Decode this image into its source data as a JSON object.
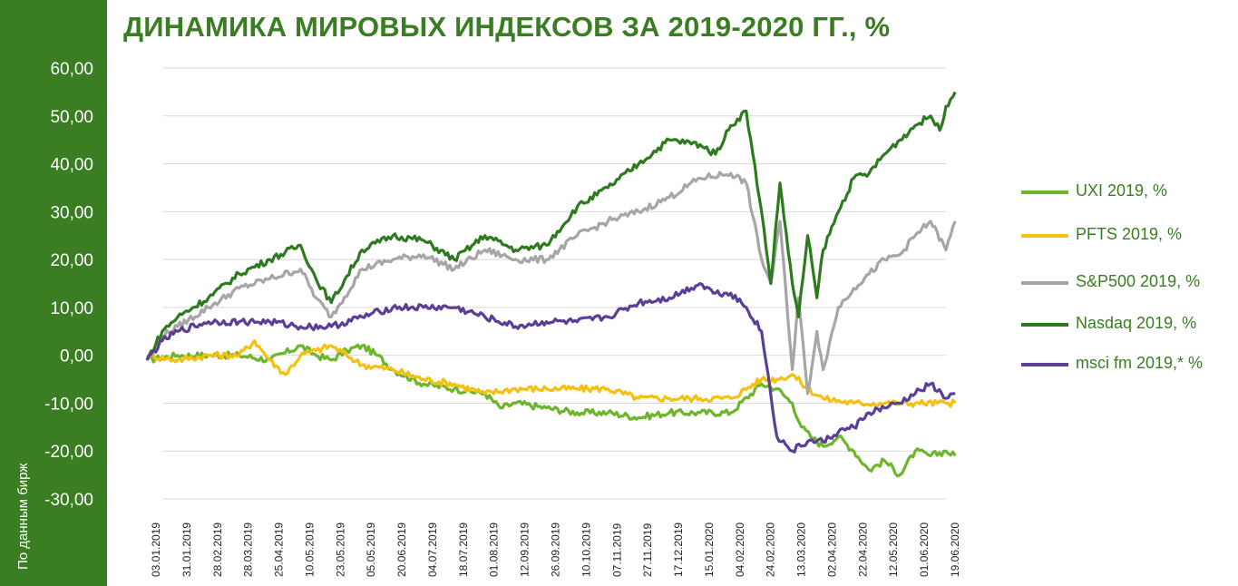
{
  "title": "ДИНАМИКА МИРОВЫХ ИНДЕКСОВ ЗА 2019-2020 ГГ., %",
  "source_note": "По данным бирж",
  "chart_data": {
    "type": "line",
    "title": "ДИНАМИКА МИРОВЫХ ИНДЕКСОВ ЗА 2019-2020 ГГ., %",
    "ylim": [
      -30,
      60
    ],
    "yticks": [
      "60,00",
      "50,00",
      "40,00",
      "30,00",
      "20,00",
      "10,00",
      "0,00",
      "-10,00",
      "-20,00",
      "-30,00"
    ],
    "grid": true,
    "legend_position": "right",
    "x_tick_labels": [
      "03.01.2019",
      "31.01.2019",
      "28.02.2019",
      "28.03.2019",
      "25.04.2019",
      "10.05.2019",
      "23.05.2019",
      "05.05.2019",
      "20.06.2019",
      "04.07.2019",
      "18.07.2019",
      "01.08.2019",
      "12.09.2019",
      "26.09.2019",
      "10.10.2019",
      "07.11.2019",
      "27.11.2019",
      "17.12.2019",
      "15.01.2020",
      "04.02.2020",
      "24.02.2020",
      "13.03.2020",
      "02.04.2020",
      "22.04.2020",
      "12.05.2020",
      "01.06.2020",
      "19.06.2020"
    ],
    "series": [
      {
        "name": "UXI 2019, %",
        "color": "#6cb52d",
        "x": [
          0,
          1,
          2,
          3,
          4,
          5,
          5.5,
          6,
          6.5,
          7,
          7.5,
          8,
          9,
          10,
          11,
          11.5,
          12,
          13,
          14,
          15,
          16,
          17,
          18,
          19,
          20,
          20.5,
          21,
          21.3,
          21.6,
          22,
          22.5,
          23,
          23.5,
          24,
          24.5,
          25,
          25.5,
          26,
          26.3
        ],
        "values": [
          -1,
          0,
          0,
          0,
          -1,
          2,
          0,
          -1,
          1,
          2,
          0,
          -3,
          -6,
          -7,
          -8,
          -11,
          -10,
          -11,
          -12,
          -12,
          -13,
          -12,
          -12,
          -12,
          -6,
          -7,
          -10,
          -15,
          -17,
          -19,
          -17,
          -20,
          -24,
          -22,
          -25,
          -20,
          -21,
          -20,
          -21
        ]
      },
      {
        "name": "PFTS 2019, %",
        "color": "#f5c010",
        "x": [
          0,
          1,
          2,
          3,
          3.5,
          4,
          4.5,
          5,
          5.5,
          6,
          6.5,
          7,
          8,
          9,
          10,
          11,
          12,
          13,
          14,
          15,
          16,
          17,
          18,
          19,
          20,
          20.5,
          21,
          21.5,
          22,
          23,
          24,
          25,
          26,
          26.3
        ],
        "values": [
          0,
          -1,
          0,
          0,
          3,
          -1,
          -4,
          0,
          1,
          2,
          0,
          -2,
          -3,
          -5,
          -6,
          -8,
          -7,
          -7,
          -7,
          -7,
          -9,
          -9,
          -9,
          -9,
          -5,
          -5,
          -4,
          -7,
          -9,
          -10,
          -10,
          -10,
          -10,
          -10
        ]
      },
      {
        "name": "S&P500 2019, %",
        "color": "#a6a6a6",
        "x": [
          0,
          0.5,
          1,
          2,
          3,
          4,
          5,
          5.5,
          6,
          7,
          8,
          9,
          10,
          11,
          12,
          13,
          14,
          15,
          16,
          17,
          18,
          19,
          19.5,
          20,
          20.3,
          20.6,
          21,
          21.2,
          21.5,
          21.8,
          22,
          22.5,
          23,
          23.5,
          24,
          24.5,
          25,
          25.5,
          26,
          26.3
        ],
        "values": [
          -1,
          4,
          6,
          10,
          14,
          16,
          18,
          12,
          8,
          18,
          20,
          21,
          18,
          22,
          20,
          20,
          25,
          28,
          30,
          33,
          37,
          38,
          36,
          20,
          15,
          28,
          -3,
          12,
          -8,
          5,
          -3,
          10,
          14,
          17,
          20,
          21,
          25,
          28,
          22,
          28
        ]
      },
      {
        "name": "Nasdaq 2019, %",
        "color": "#2e7a1f",
        "x": [
          0,
          0.5,
          1,
          2,
          3,
          4,
          5,
          5.5,
          6,
          7,
          8,
          9,
          10,
          11,
          12,
          13,
          14,
          15,
          16,
          17,
          18,
          18.5,
          19,
          19.5,
          20,
          20.3,
          20.6,
          21,
          21.2,
          21.5,
          21.8,
          22,
          22.5,
          23,
          23.5,
          24,
          24.5,
          25,
          25.5,
          25.8,
          26,
          26.3
        ],
        "values": [
          -1,
          5,
          8,
          12,
          17,
          20,
          23,
          16,
          11,
          22,
          25,
          24,
          20,
          25,
          22,
          23,
          31,
          35,
          40,
          45,
          44,
          42,
          48,
          51,
          30,
          15,
          36,
          15,
          8,
          25,
          12,
          22,
          30,
          37,
          38,
          42,
          45,
          48,
          50,
          47,
          52,
          55
        ]
      },
      {
        "name": "msci fm 2019,* %",
        "color": "#5a3f96",
        "x": [
          0,
          0.5,
          1,
          2,
          3,
          4,
          5,
          6,
          7,
          8,
          9,
          10,
          11,
          12,
          13,
          14,
          15,
          16,
          17,
          18,
          18.5,
          19,
          19.5,
          20,
          20.5,
          21,
          21.5,
          22,
          22.5,
          23,
          23.5,
          24,
          24.5,
          25,
          25.5,
          26,
          26.3
        ],
        "values": [
          -1,
          3,
          5,
          7,
          7,
          7,
          6,
          6,
          8,
          10,
          10,
          10,
          8,
          6,
          7,
          7,
          8,
          11,
          12,
          15,
          13,
          13,
          10,
          5,
          -17,
          -20,
          -18,
          -18,
          -16,
          -15,
          -12,
          -11,
          -10,
          -8,
          -6,
          -9,
          -8
        ]
      }
    ]
  }
}
